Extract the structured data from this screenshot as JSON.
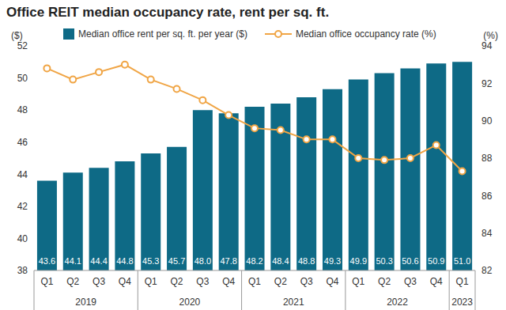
{
  "chart_data": {
    "type": "bar",
    "title": "Office REIT median occupancy rate, rent per sq. ft.",
    "y_label": "($)",
    "y2_label": "(%)",
    "categories": [
      "Q1",
      "Q2",
      "Q3",
      "Q4",
      "Q1",
      "Q2",
      "Q3",
      "Q4",
      "Q1",
      "Q2",
      "Q3",
      "Q4",
      "Q1",
      "Q2",
      "Q3",
      "Q4",
      "Q1"
    ],
    "category_groups": [
      {
        "label": "2019",
        "count": 4
      },
      {
        "label": "2020",
        "count": 4
      },
      {
        "label": "2021",
        "count": 4
      },
      {
        "label": "2022",
        "count": 4
      },
      {
        "label": "2023",
        "count": 1
      }
    ],
    "series": [
      {
        "name": "Median office rent per sq. ft. per year ($)",
        "type": "bar",
        "color": "#0e6a86",
        "data_labels": true,
        "values": [
          43.6,
          44.1,
          44.4,
          44.8,
          45.3,
          45.7,
          48.0,
          47.8,
          48.2,
          48.4,
          48.8,
          49.3,
          49.9,
          50.3,
          50.6,
          50.9,
          51.0
        ],
        "value_labels": [
          "43.6",
          "44.1",
          "44.4",
          "44.8",
          "45.3",
          "45.7",
          "48.0",
          "47.8",
          "48.2",
          "48.4",
          "48.8",
          "49.3",
          "49.9",
          "50.3",
          "50.6",
          "50.9",
          "51.0"
        ]
      },
      {
        "name": "Median office occupancy rate (%)",
        "type": "line",
        "axis": "y2",
        "color": "#f0a545",
        "marker": "circle",
        "line_style": "solid",
        "values": [
          92.8,
          92.2,
          92.6,
          93.0,
          92.2,
          91.7,
          91.1,
          90.3,
          89.6,
          89.5,
          89.0,
          89.0,
          88.0,
          87.9,
          88.0,
          88.7,
          87.3
        ]
      }
    ],
    "ylim": [
      38,
      52
    ],
    "yticks": [
      38,
      40,
      42,
      44,
      46,
      48,
      50,
      52
    ],
    "y2lim": [
      82,
      94
    ],
    "y2ticks": [
      82,
      84,
      86,
      88,
      90,
      92,
      94
    ],
    "grid": false
  }
}
